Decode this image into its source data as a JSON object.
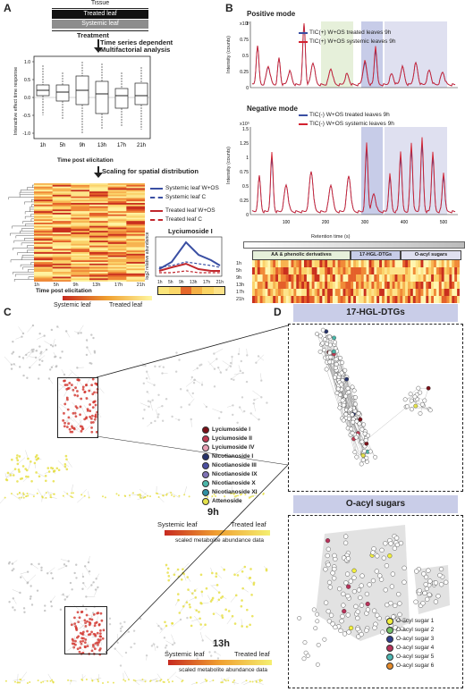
{
  "panels": {
    "a": "A",
    "b": "B",
    "c": "C",
    "d": "D"
  },
  "panel_a": {
    "tissue_title": "Tissue",
    "treated_label": "Treated leaf",
    "systemic_label": "Systemic leaf",
    "treatment_label": "Treatment",
    "analysis_label": "Time series dependent\nMultifactorial analysis",
    "boxplot_ylabel": "Interactive effect time response",
    "boxplot_xlabel": "Time post elicitation",
    "time_labels": [
      "1h",
      "5h",
      "9h",
      "13h",
      "17h",
      "21h"
    ],
    "boxplot_yticks": [
      "1.0",
      "0.5",
      "0.0",
      "-0.5",
      "-1.0"
    ],
    "scaling_label": "Scaling for spatial distribution",
    "heatmap_xlabel": "Time post elicitation",
    "legend": [
      {
        "label": "Systemic leaf W+OS",
        "color": "#3a4fa3",
        "dash": false
      },
      {
        "label": "Systemic leaf C",
        "color": "#3a4fa3",
        "dash": true
      },
      {
        "label": "Treated leaf W+OS",
        "color": "#c0262c",
        "dash": false
      },
      {
        "label": "Treated leaf C",
        "color": "#c0262c",
        "dash": true
      }
    ],
    "lyciumoside_title": "Lyciumoside I",
    "lyciumoside_ylabel": "log2 relative abundance",
    "scale_systemic": "Systemic leaf",
    "scale_treated": "Treated leaf"
  },
  "panel_b": {
    "positive_title": "Positive mode",
    "negative_title": "Negative mode",
    "pos_legend": [
      "TIC(+) W+OS treated leaves 9h",
      "TIC(+) W+OS systemic leaves 9h"
    ],
    "neg_legend": [
      "TIC(-) W+OS treated leaves 9h",
      "TIC(-) W+OS systemic leaves 9h"
    ],
    "ylabel": "Intensity (counts)",
    "pos_scale": "x10⁶",
    "neg_scale": "x10⁵",
    "pos_yticks": [
      "1",
      "0.75",
      "0.5",
      "0.25",
      "0"
    ],
    "neg_yticks": [
      "1.5",
      "1.25",
      "1",
      "0.75",
      "0.5",
      "0.25",
      "0"
    ],
    "xticks": [
      "100",
      "200",
      "300",
      "400",
      "500"
    ],
    "xlabel": "Retention time (s)",
    "regions": [
      "AA & phenolic derivatives",
      "17-HGL-DTGs",
      "O-acyl sugars"
    ],
    "heat_rows": [
      "1h",
      "5h",
      "9h",
      "13h",
      "17h",
      "21h"
    ],
    "colors": {
      "blue": "#3a4fa3",
      "red": "#d32230"
    }
  },
  "panel_c": {
    "legend": [
      {
        "label": "Lyciumoside I",
        "color": "#7a1018"
      },
      {
        "label": "Lyciumoside II",
        "color": "#c23a52"
      },
      {
        "label": "Lyciumoside IV",
        "color": "#e7a0b4"
      },
      {
        "label": "Nicotianoside I",
        "color": "#27336b"
      },
      {
        "label": "Nicotianoside III",
        "color": "#4b4fa0"
      },
      {
        "label": "Nicotianoside IX",
        "color": "#7f72b5"
      },
      {
        "label": "Nicotianoside X",
        "color": "#4bb6a8"
      },
      {
        "label": "Nicotianoside XI",
        "color": "#2f8fa3"
      },
      {
        "label": "Attenoside",
        "color": "#e4e24a"
      }
    ],
    "time_9": "9h",
    "time_13": "13h",
    "systemic": "Systemic leaf",
    "treated": "Treated leaf",
    "scale_caption": "scaled metabolite abundance data"
  },
  "panel_d": {
    "top_title": "17-HGL-DTGs",
    "bottom_title": "O-acyl sugars",
    "legend": [
      {
        "label": "O-acyl sugar 1",
        "color": "#f2ef3c"
      },
      {
        "label": "O-acyl sugar 2",
        "color": "#77c16a"
      },
      {
        "label": "O-acyl sugar 3",
        "color": "#2f3f8f"
      },
      {
        "label": "O-acyl sugar 4",
        "color": "#b8325a"
      },
      {
        "label": "O-acyl sugar 5",
        "color": "#4cb7b2"
      },
      {
        "label": "O-acyl sugar 6",
        "color": "#e58a2a"
      }
    ]
  }
}
